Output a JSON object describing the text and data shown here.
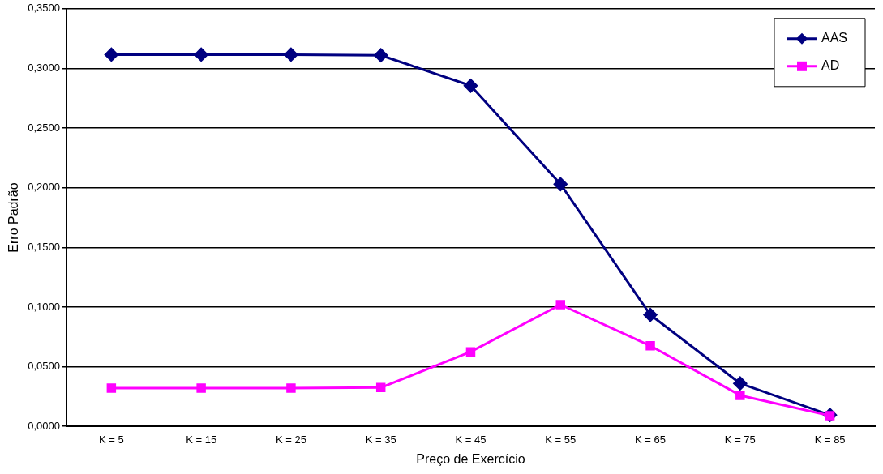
{
  "chart_data": {
    "type": "line",
    "xlabel": "Preço de Exercício",
    "ylabel": "Erro Padrão",
    "categories": [
      "K = 5",
      "K = 15",
      "K = 25",
      "K = 35",
      "K = 45",
      "K = 55",
      "K = 65",
      "K = 75",
      "K = 85"
    ],
    "series": [
      {
        "name": "AAS",
        "color": "#000080",
        "marker": "diamond",
        "values": [
          0.3115,
          0.3115,
          0.3115,
          0.311,
          0.2855,
          0.203,
          0.0935,
          0.036,
          0.0095
        ]
      },
      {
        "name": "AD",
        "color": "#ff00ff",
        "marker": "square",
        "values": [
          0.032,
          0.032,
          0.032,
          0.0325,
          0.0625,
          0.102,
          0.0675,
          0.026,
          0.009
        ]
      }
    ],
    "ylim": [
      0,
      0.35
    ],
    "yticks": [
      {
        "value": 0,
        "label": "0,0000"
      },
      {
        "value": 0.05,
        "label": "0,0500"
      },
      {
        "value": 0.1,
        "label": "0,1000"
      },
      {
        "value": 0.15,
        "label": "0,1500"
      },
      {
        "value": 0.2,
        "label": "0,2000"
      },
      {
        "value": 0.25,
        "label": "0,2500"
      },
      {
        "value": 0.3,
        "label": "0,3000"
      },
      {
        "value": 0.35,
        "label": "0,3500"
      }
    ],
    "grid": "y",
    "legend": "top right",
    "line_style": "solid"
  }
}
